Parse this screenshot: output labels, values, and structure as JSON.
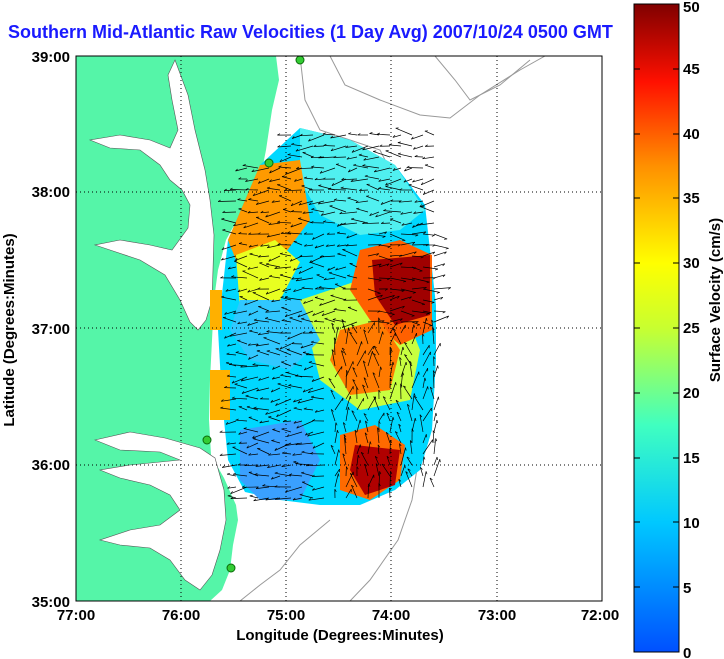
{
  "title": "Southern Mid-Atlantic Raw Velocities (1 Day Avg) 2007/10/24 0500 GMT",
  "chart_data": {
    "type": "heatmap",
    "title": "Southern Mid-Atlantic Raw Velocities (1 Day Avg) 2007/10/24 0500 GMT",
    "xlabel": "Longitude (Degrees:Minutes)",
    "ylabel": "Latitude (Degrees:Minutes)",
    "x_ticks": [
      "77:00",
      "76:00",
      "75:00",
      "74:00",
      "73:00",
      "72:00"
    ],
    "y_ticks": [
      "35:00",
      "36:00",
      "37:00",
      "38:00",
      "39:00"
    ],
    "xlim": [
      -77,
      -72
    ],
    "ylim": [
      35,
      39
    ],
    "grid": true,
    "colorbar": {
      "label": "Surface Velocity (cm/s)",
      "min": 0,
      "max": 50,
      "ticks": [
        "0",
        "5",
        "10",
        "15",
        "20",
        "25",
        "30",
        "35",
        "40",
        "45",
        "50"
      ]
    },
    "colors": {
      "land": "#55f5a8",
      "water": "#ffffff",
      "grid": "#000000",
      "title": "#1a1aff"
    }
  }
}
